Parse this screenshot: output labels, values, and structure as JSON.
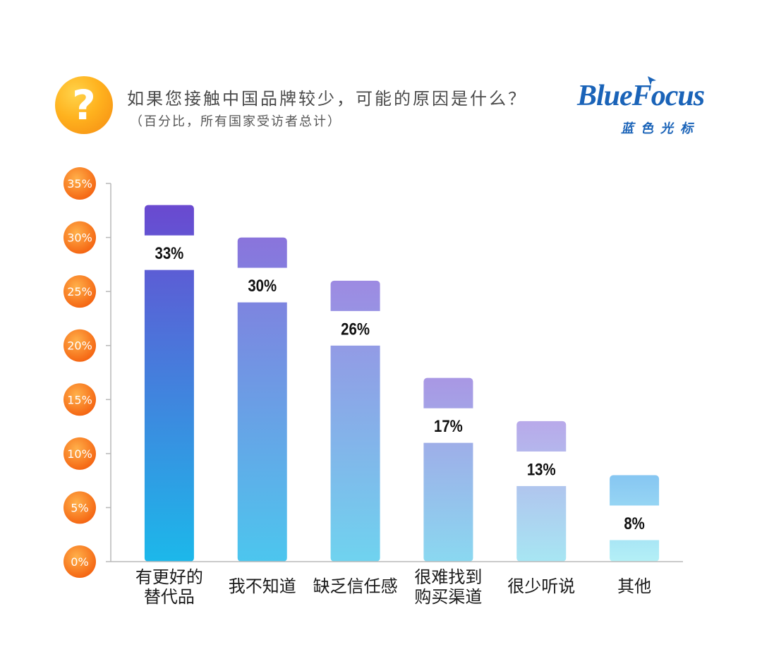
{
  "header": {
    "icon_glyph": "?",
    "icon_name": "question-mark-icon",
    "title": "如果您接触中国品牌较少，可能的原因是什么？",
    "subtitle": "（百分比，所有国家受访者总计）"
  },
  "logo": {
    "english": "BlueFocus",
    "chinese": "蓝色光标",
    "color": "#1a63b8"
  },
  "chart_data": {
    "type": "bar",
    "title": "如果您接触中国品牌较少，可能的原因是什么？",
    "subtitle": "（百分比，所有国家受访者总计）",
    "categories": [
      [
        "有更好的",
        "替代品"
      ],
      [
        "我不知道"
      ],
      [
        "缺乏信任感"
      ],
      [
        "很难找到",
        "购买渠道"
      ],
      [
        "很少听说"
      ],
      [
        "其他"
      ]
    ],
    "values": [
      33,
      30,
      26,
      17,
      13,
      8
    ],
    "data_labels": [
      "33%",
      "30%",
      "26%",
      "17%",
      "13%",
      "8%"
    ],
    "ylim": [
      0,
      35
    ],
    "yticks": [
      0,
      5,
      10,
      15,
      20,
      25,
      30,
      35
    ],
    "ytick_labels": [
      "0%",
      "5%",
      "10%",
      "15%",
      "20%",
      "25%",
      "30%",
      "35%"
    ],
    "ytick_style": "orange circular badges",
    "grid": false,
    "legend": "none",
    "bar_colors": [
      {
        "top": "#6a49d0",
        "bottom": "#1cb8ea"
      },
      {
        "top": "#8a74dc",
        "bottom": "#4cc6ee"
      },
      {
        "top": "#9d8ae2",
        "bottom": "#6fd3ef"
      },
      {
        "top": "#a997e4",
        "bottom": "#8ad8f0"
      },
      {
        "top": "#b8a9ea",
        "bottom": "#a7e6f3"
      },
      {
        "top": "#86c6f2",
        "bottom": "#b4f0f6"
      }
    ]
  }
}
